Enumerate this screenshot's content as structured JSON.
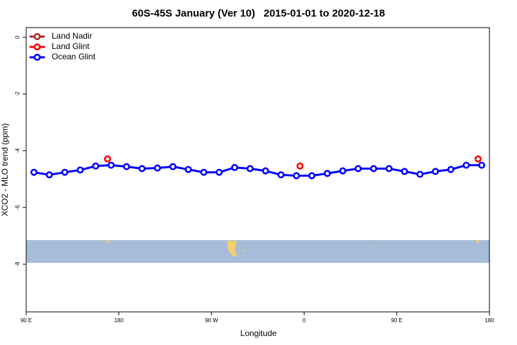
{
  "chart_data": {
    "type": "line",
    "title": "60S-45S January (Ver 10)   2015-01-01 to 2020-12-18",
    "xlabel": "Longitude",
    "ylabel": "XCO2 - MLO trend (ppm)",
    "xlim": [
      90,
      540
    ],
    "xticks": [
      {
        "value": 90,
        "label": "90 E"
      },
      {
        "value": 180,
        "label": "180"
      },
      {
        "value": 270,
        "label": "90 W"
      },
      {
        "value": 360,
        "label": "0"
      },
      {
        "value": 450,
        "label": "90 E"
      },
      {
        "value": 540,
        "label": "180"
      }
    ],
    "ylim": [
      -9.68,
      0.34
    ],
    "yticks": [
      0,
      -2,
      -4,
      -6,
      -8
    ],
    "legend": "top-left",
    "series": [
      {
        "name": "Land Nadir",
        "color": "#a52a2a",
        "x": [],
        "values": []
      },
      {
        "name": "Land Glint",
        "color": "#ff0000",
        "x": [
          169,
          356,
          529
        ],
        "values": [
          -4.29,
          -4.54,
          -4.29
        ]
      },
      {
        "name": "Ocean Glint",
        "color": "#0000ff",
        "x": [
          97.5,
          112.5,
          127.5,
          142.5,
          157.5,
          172.5,
          187.5,
          202.5,
          217.5,
          232.5,
          247.5,
          262.5,
          277.5,
          292.5,
          307.5,
          322.5,
          337.5,
          352.5,
          367.5,
          382.5,
          397.5,
          412.5,
          427.5,
          442.5,
          457.5,
          472.5,
          487.5,
          502.5,
          517.5,
          532.5
        ],
        "values": [
          -4.76,
          -4.85,
          -4.76,
          -4.68,
          -4.54,
          -4.51,
          -4.56,
          -4.63,
          -4.61,
          -4.56,
          -4.66,
          -4.76,
          -4.76,
          -4.59,
          -4.63,
          -4.71,
          -4.85,
          -4.88,
          -4.88,
          -4.8,
          -4.71,
          -4.63,
          -4.63,
          -4.63,
          -4.73,
          -4.83,
          -4.73,
          -4.66,
          -4.51,
          -4.51
        ]
      }
    ]
  }
}
